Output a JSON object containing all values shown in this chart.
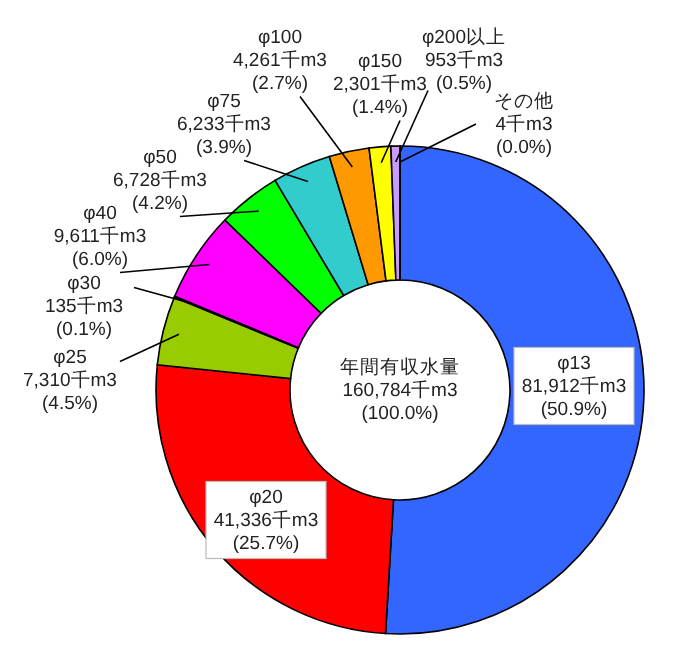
{
  "chart_data": {
    "type": "donut",
    "categories": [
      "φ13",
      "φ20",
      "φ25",
      "φ30",
      "φ40",
      "φ50",
      "φ75",
      "φ100",
      "φ150",
      "φ200以上",
      "その他"
    ],
    "values": [
      81912,
      41336,
      7310,
      135,
      9611,
      6728,
      6233,
      4261,
      2301,
      953,
      4
    ],
    "colors": [
      "#3366ff",
      "#ff0000",
      "#99cc00",
      "#808080",
      "#ff00ff",
      "#00ff00",
      "#33cccc",
      "#ff9900",
      "#ffff00",
      "#cc99ff",
      "#ff99cc"
    ],
    "value_labels": [
      "81,912千m3\n(50.9%)",
      "41,336千m3\n(25.7%)",
      "7,310千m3\n(4.5%)",
      "135千m3\n(0.1%)",
      "9,611千m3\n(6.0%)",
      "6,728千m3\n(4.2%)",
      "6,233千m3\n(3.9%)",
      "4,261千m3\n(2.7%)",
      "2,301千m3\n(1.4%)",
      "953千m3\n(0.5%)",
      "4千m3\n(0.0%)"
    ],
    "annotations": [
      "年間有収水量\n160,784千m3\n(100.0%)"
    ]
  }
}
